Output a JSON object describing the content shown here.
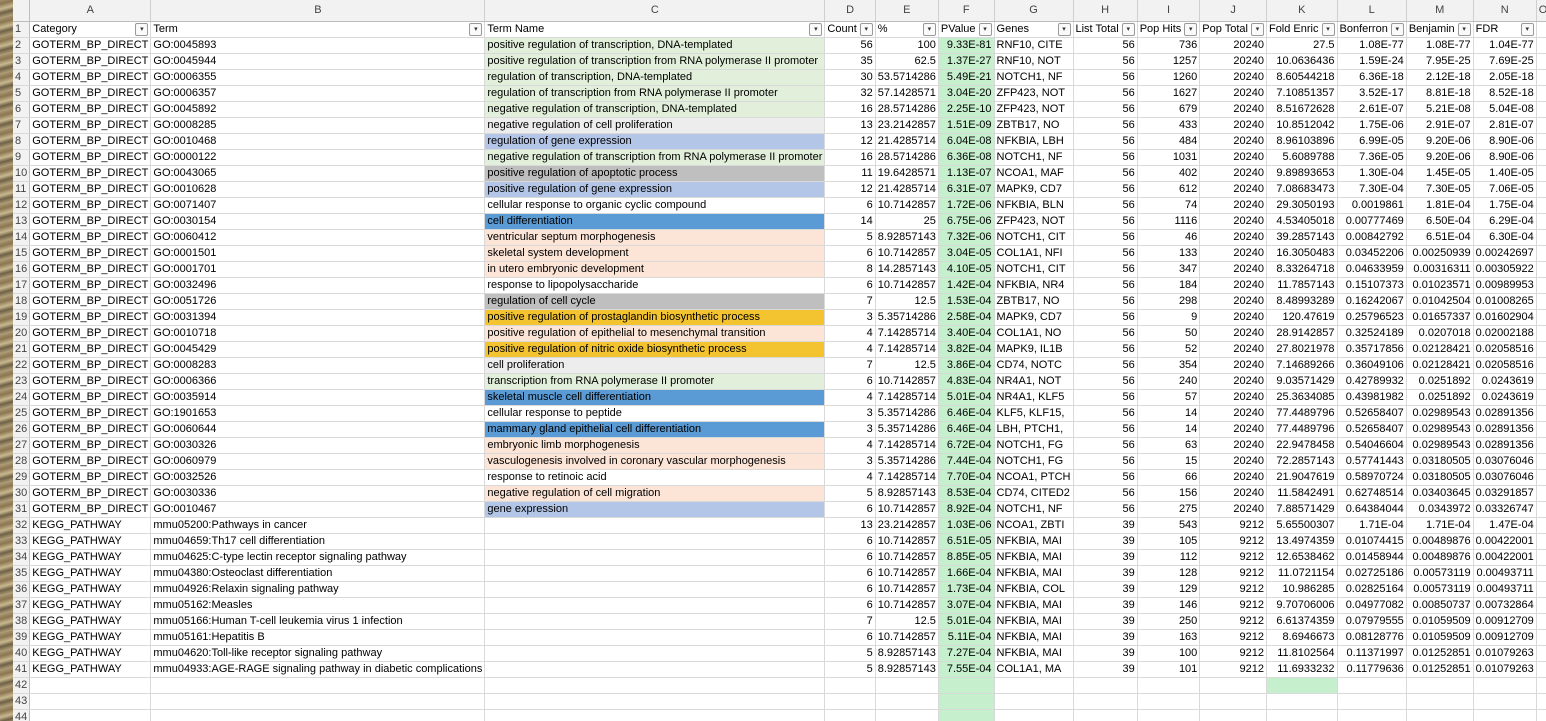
{
  "column_letters": [
    "A",
    "B",
    "C",
    "D",
    "E",
    "F",
    "G",
    "H",
    "I",
    "J",
    "K",
    "L",
    "M",
    "N",
    "O"
  ],
  "headers": [
    "Category",
    "Term",
    "Term Name",
    "Count",
    "%",
    "PValue",
    "Genes",
    "List Total",
    "Pop Hits",
    "Pop Total",
    "Fold Enric",
    "Bonferron",
    "Benjamin",
    "FDR"
  ],
  "rows": [
    {
      "n": "2",
      "cat": "GOTERM_BP_DIRECT",
      "term": "GO:0045893",
      "name": "positive regulation of transcription, DNA-templated",
      "count": "56",
      "pct": "100",
      "pv": "9.33E-81",
      "genes": "RNF10, CITE",
      "lt": "56",
      "ph": "736",
      "pt": "20240",
      "fe": "27.5",
      "bon": "1.08E-77",
      "ben": "1.08E-77",
      "fdr": "1.04E-77",
      "hl": "lgreen"
    },
    {
      "n": "3",
      "cat": "GOTERM_BP_DIRECT",
      "term": "GO:0045944",
      "name": "positive regulation of transcription from RNA polymerase II promoter",
      "count": "35",
      "pct": "62.5",
      "pv": "1.37E-27",
      "genes": "RNF10, NOT",
      "lt": "56",
      "ph": "1257",
      "pt": "20240",
      "fe": "10.0636436",
      "bon": "1.59E-24",
      "ben": "7.95E-25",
      "fdr": "7.69E-25",
      "hl": "lgreen"
    },
    {
      "n": "4",
      "cat": "GOTERM_BP_DIRECT",
      "term": "GO:0006355",
      "name": "regulation of transcription, DNA-templated",
      "count": "30",
      "pct": "53.5714286",
      "pv": "5.49E-21",
      "genes": "NOTCH1, NF",
      "lt": "56",
      "ph": "1260",
      "pt": "20240",
      "fe": "8.60544218",
      "bon": "6.36E-18",
      "ben": "2.12E-18",
      "fdr": "2.05E-18",
      "hl": "lgreen"
    },
    {
      "n": "5",
      "cat": "GOTERM_BP_DIRECT",
      "term": "GO:0006357",
      "name": "regulation of transcription from RNA polymerase II promoter",
      "count": "32",
      "pct": "57.1428571",
      "pv": "3.04E-20",
      "genes": "ZFP423, NOT",
      "lt": "56",
      "ph": "1627",
      "pt": "20240",
      "fe": "7.10851357",
      "bon": "3.52E-17",
      "ben": "8.81E-18",
      "fdr": "8.52E-18",
      "hl": "lgreen"
    },
    {
      "n": "6",
      "cat": "GOTERM_BP_DIRECT",
      "term": "GO:0045892",
      "name": "negative regulation of transcription, DNA-templated",
      "count": "16",
      "pct": "28.5714286",
      "pv": "2.25E-10",
      "genes": "ZFP423, NOT",
      "lt": "56",
      "ph": "679",
      "pt": "20240",
      "fe": "8.51672628",
      "bon": "2.61E-07",
      "ben": "5.21E-08",
      "fdr": "5.04E-08",
      "hl": "lgreen"
    },
    {
      "n": "7",
      "cat": "GOTERM_BP_DIRECT",
      "term": "GO:0008285",
      "name": "negative regulation of cell proliferation",
      "count": "13",
      "pct": "23.2142857",
      "pv": "1.51E-09",
      "genes": "ZBTB17, NO",
      "lt": "56",
      "ph": "433",
      "pt": "20240",
      "fe": "10.8512042",
      "bon": "1.75E-06",
      "ben": "2.91E-07",
      "fdr": "2.81E-07",
      "hl": "lgray"
    },
    {
      "n": "8",
      "cat": "GOTERM_BP_DIRECT",
      "term": "GO:0010468",
      "name": "regulation of gene expression",
      "count": "12",
      "pct": "21.4285714",
      "pv": "6.04E-08",
      "genes": "NFKBIA, LBH",
      "lt": "56",
      "ph": "484",
      "pt": "20240",
      "fe": "8.96103896",
      "bon": "6.99E-05",
      "ben": "9.20E-06",
      "fdr": "8.90E-06",
      "hl": "lblue"
    },
    {
      "n": "9",
      "cat": "GOTERM_BP_DIRECT",
      "term": "GO:0000122",
      "name": "negative regulation of transcription from RNA polymerase II promoter",
      "count": "16",
      "pct": "28.5714286",
      "pv": "6.36E-08",
      "genes": "NOTCH1, NF",
      "lt": "56",
      "ph": "1031",
      "pt": "20240",
      "fe": "5.6089788",
      "bon": "7.36E-05",
      "ben": "9.20E-06",
      "fdr": "8.90E-06",
      "hl": "lgreen"
    },
    {
      "n": "10",
      "cat": "GOTERM_BP_DIRECT",
      "term": "GO:0043065",
      "name": "positive regulation of apoptotic process",
      "count": "11",
      "pct": "19.6428571",
      "pv": "1.13E-07",
      "genes": "NCOA1, MAF",
      "lt": "56",
      "ph": "402",
      "pt": "20240",
      "fe": "9.89893653",
      "bon": "1.30E-04",
      "ben": "1.45E-05",
      "fdr": "1.40E-05",
      "hl": "gray"
    },
    {
      "n": "11",
      "cat": "GOTERM_BP_DIRECT",
      "term": "GO:0010628",
      "name": "positive regulation of gene expression",
      "count": "12",
      "pct": "21.4285714",
      "pv": "6.31E-07",
      "genes": "MAPK9, CD7",
      "lt": "56",
      "ph": "612",
      "pt": "20240",
      "fe": "7.08683473",
      "bon": "7.30E-04",
      "ben": "7.30E-05",
      "fdr": "7.06E-05",
      "hl": "lblue"
    },
    {
      "n": "12",
      "cat": "GOTERM_BP_DIRECT",
      "term": "GO:0071407",
      "name": "cellular response to organic cyclic compound",
      "count": "6",
      "pct": "10.7142857",
      "pv": "1.72E-06",
      "genes": "NFKBIA, BLN",
      "lt": "56",
      "ph": "74",
      "pt": "20240",
      "fe": "29.3050193",
      "bon": "0.0019861",
      "ben": "1.81E-04",
      "fdr": "1.75E-04",
      "hl": ""
    },
    {
      "n": "13",
      "cat": "GOTERM_BP_DIRECT",
      "term": "GO:0030154",
      "name": "cell differentiation",
      "count": "14",
      "pct": "25",
      "pv": "6.75E-06",
      "genes": "ZFP423, NOT",
      "lt": "56",
      "ph": "1116",
      "pt": "20240",
      "fe": "4.53405018",
      "bon": "0.00777469",
      "ben": "6.50E-04",
      "fdr": "6.29E-04",
      "hl": "dblue"
    },
    {
      "n": "14",
      "cat": "GOTERM_BP_DIRECT",
      "term": "GO:0060412",
      "name": "ventricular septum morphogenesis",
      "count": "5",
      "pct": "8.92857143",
      "pv": "7.32E-06",
      "genes": "NOTCH1, CIT",
      "lt": "56",
      "ph": "46",
      "pt": "20240",
      "fe": "39.2857143",
      "bon": "0.00842792",
      "ben": "6.51E-04",
      "fdr": "6.30E-04",
      "hl": "peach"
    },
    {
      "n": "15",
      "cat": "GOTERM_BP_DIRECT",
      "term": "GO:0001501",
      "name": "skeletal system development",
      "count": "6",
      "pct": "10.7142857",
      "pv": "3.04E-05",
      "genes": "COL1A1, NFI",
      "lt": "56",
      "ph": "133",
      "pt": "20240",
      "fe": "16.3050483",
      "bon": "0.03452206",
      "ben": "0.00250939",
      "fdr": "0.00242697",
      "hl": "peach"
    },
    {
      "n": "16",
      "cat": "GOTERM_BP_DIRECT",
      "term": "GO:0001701",
      "name": "in utero embryonic development",
      "count": "8",
      "pct": "14.2857143",
      "pv": "4.10E-05",
      "genes": "NOTCH1, CIT",
      "lt": "56",
      "ph": "347",
      "pt": "20240",
      "fe": "8.33264718",
      "bon": "0.04633959",
      "ben": "0.00316311",
      "fdr": "0.00305922",
      "hl": "peach"
    },
    {
      "n": "17",
      "cat": "GOTERM_BP_DIRECT",
      "term": "GO:0032496",
      "name": "response to lipopolysaccharide",
      "count": "6",
      "pct": "10.7142857",
      "pv": "1.42E-04",
      "genes": "NFKBIA, NR4",
      "lt": "56",
      "ph": "184",
      "pt": "20240",
      "fe": "11.7857143",
      "bon": "0.15107373",
      "ben": "0.01023571",
      "fdr": "0.00989953",
      "hl": ""
    },
    {
      "n": "18",
      "cat": "GOTERM_BP_DIRECT",
      "term": "GO:0051726",
      "name": "regulation of cell cycle",
      "count": "7",
      "pct": "12.5",
      "pv": "1.53E-04",
      "genes": "ZBTB17, NO",
      "lt": "56",
      "ph": "298",
      "pt": "20240",
      "fe": "8.48993289",
      "bon": "0.16242067",
      "ben": "0.01042504",
      "fdr": "0.01008265",
      "hl": "gray"
    },
    {
      "n": "19",
      "cat": "GOTERM_BP_DIRECT",
      "term": "GO:0031394",
      "name": "positive regulation of prostaglandin biosynthetic process",
      "count": "3",
      "pct": "5.35714286",
      "pv": "2.58E-04",
      "genes": "MAPK9, CD7",
      "lt": "56",
      "ph": "9",
      "pt": "20240",
      "fe": "120.47619",
      "bon": "0.25796523",
      "ben": "0.01657337",
      "fdr": "0.01602904",
      "hl": "gold"
    },
    {
      "n": "20",
      "cat": "GOTERM_BP_DIRECT",
      "term": "GO:0010718",
      "name": "positive regulation of epithelial to mesenchymal transition",
      "count": "4",
      "pct": "7.14285714",
      "pv": "3.40E-04",
      "genes": "COL1A1, NO",
      "lt": "56",
      "ph": "50",
      "pt": "20240",
      "fe": "28.9142857",
      "bon": "0.32524189",
      "ben": "0.0207018",
      "fdr": "0.02002188",
      "hl": "peach"
    },
    {
      "n": "21",
      "cat": "GOTERM_BP_DIRECT",
      "term": "GO:0045429",
      "name": "positive regulation of nitric oxide biosynthetic process",
      "count": "4",
      "pct": "7.14285714",
      "pv": "3.82E-04",
      "genes": "MAPK9, IL1B",
      "lt": "56",
      "ph": "52",
      "pt": "20240",
      "fe": "27.8021978",
      "bon": "0.35717856",
      "ben": "0.02128421",
      "fdr": "0.02058516",
      "hl": "gold"
    },
    {
      "n": "22",
      "cat": "GOTERM_BP_DIRECT",
      "term": "GO:0008283",
      "name": "cell proliferation",
      "count": "7",
      "pct": "12.5",
      "pv": "3.86E-04",
      "genes": "CD74, NOTC",
      "lt": "56",
      "ph": "354",
      "pt": "20240",
      "fe": "7.14689266",
      "bon": "0.36049106",
      "ben": "0.02128421",
      "fdr": "0.02058516",
      "hl": "lgray"
    },
    {
      "n": "23",
      "cat": "GOTERM_BP_DIRECT",
      "term": "GO:0006366",
      "name": "transcription from RNA polymerase II promoter",
      "count": "6",
      "pct": "10.7142857",
      "pv": "4.83E-04",
      "genes": "NR4A1, NOT",
      "lt": "56",
      "ph": "240",
      "pt": "20240",
      "fe": "9.03571429",
      "bon": "0.42789932",
      "ben": "0.0251892",
      "fdr": "0.0243619",
      "hl": "lgreen"
    },
    {
      "n": "24",
      "cat": "GOTERM_BP_DIRECT",
      "term": "GO:0035914",
      "name": "skeletal muscle cell differentiation",
      "count": "4",
      "pct": "7.14285714",
      "pv": "5.01E-04",
      "genes": "NR4A1, KLF5",
      "lt": "56",
      "ph": "57",
      "pt": "20240",
      "fe": "25.3634085",
      "bon": "0.43981982",
      "ben": "0.0251892",
      "fdr": "0.0243619",
      "hl": "dblue"
    },
    {
      "n": "25",
      "cat": "GOTERM_BP_DIRECT",
      "term": "GO:1901653",
      "name": "cellular response to peptide",
      "count": "3",
      "pct": "5.35714286",
      "pv": "6.46E-04",
      "genes": "KLF5, KLF15,",
      "lt": "56",
      "ph": "14",
      "pt": "20240",
      "fe": "77.4489796",
      "bon": "0.52658407",
      "ben": "0.02989543",
      "fdr": "0.02891356",
      "hl": ""
    },
    {
      "n": "26",
      "cat": "GOTERM_BP_DIRECT",
      "term": "GO:0060644",
      "name": "mammary gland epithelial cell differentiation",
      "count": "3",
      "pct": "5.35714286",
      "pv": "6.46E-04",
      "genes": "LBH, PTCH1,",
      "lt": "56",
      "ph": "14",
      "pt": "20240",
      "fe": "77.4489796",
      "bon": "0.52658407",
      "ben": "0.02989543",
      "fdr": "0.02891356",
      "hl": "dblue"
    },
    {
      "n": "27",
      "cat": "GOTERM_BP_DIRECT",
      "term": "GO:0030326",
      "name": "embryonic limb morphogenesis",
      "count": "4",
      "pct": "7.14285714",
      "pv": "6.72E-04",
      "genes": "NOTCH1, FG",
      "lt": "56",
      "ph": "63",
      "pt": "20240",
      "fe": "22.9478458",
      "bon": "0.54046604",
      "ben": "0.02989543",
      "fdr": "0.02891356",
      "hl": "peach"
    },
    {
      "n": "28",
      "cat": "GOTERM_BP_DIRECT",
      "term": "GO:0060979",
      "name": "vasculogenesis involved in coronary vascular morphogenesis",
      "count": "3",
      "pct": "5.35714286",
      "pv": "7.44E-04",
      "genes": "NOTCH1, FG",
      "lt": "56",
      "ph": "15",
      "pt": "20240",
      "fe": "72.2857143",
      "bon": "0.57741443",
      "ben": "0.03180505",
      "fdr": "0.03076046",
      "hl": "peach"
    },
    {
      "n": "29",
      "cat": "GOTERM_BP_DIRECT",
      "term": "GO:0032526",
      "name": "response to retinoic acid",
      "count": "4",
      "pct": "7.14285714",
      "pv": "7.70E-04",
      "genes": "NCOA1, PTCH",
      "lt": "56",
      "ph": "66",
      "pt": "20240",
      "fe": "21.9047619",
      "bon": "0.58970724",
      "ben": "0.03180505",
      "fdr": "0.03076046",
      "hl": ""
    },
    {
      "n": "30",
      "cat": "GOTERM_BP_DIRECT",
      "term": "GO:0030336",
      "name": "negative regulation of cell migration",
      "count": "5",
      "pct": "8.92857143",
      "pv": "8.53E-04",
      "genes": "CD74, CITED2",
      "lt": "56",
      "ph": "156",
      "pt": "20240",
      "fe": "11.5842491",
      "bon": "0.62748514",
      "ben": "0.03403645",
      "fdr": "0.03291857",
      "hl": "peach"
    },
    {
      "n": "31",
      "cat": "GOTERM_BP_DIRECT",
      "term": "GO:0010467",
      "name": "gene expression",
      "count": "6",
      "pct": "10.7142857",
      "pv": "8.92E-04",
      "genes": "NOTCH1, NF",
      "lt": "56",
      "ph": "275",
      "pt": "20240",
      "fe": "7.88571429",
      "bon": "0.64384044",
      "ben": "0.0343972",
      "fdr": "0.03326747",
      "hl": "lblue"
    },
    {
      "n": "32",
      "cat": "KEGG_PATHWAY",
      "term": "mmu05200:Pathways in cancer",
      "name": "",
      "count": "13",
      "pct": "23.2142857",
      "pv": "1.03E-06",
      "genes": "NCOA1, ZBTI",
      "lt": "39",
      "ph": "543",
      "pt": "9212",
      "fe": "5.65500307",
      "bon": "1.71E-04",
      "ben": "1.71E-04",
      "fdr": "1.47E-04",
      "hl": ""
    },
    {
      "n": "33",
      "cat": "KEGG_PATHWAY",
      "term": "mmu04659:Th17 cell differentiation",
      "name": "",
      "count": "6",
      "pct": "10.7142857",
      "pv": "6.51E-05",
      "genes": "NFKBIA, MAI",
      "lt": "39",
      "ph": "105",
      "pt": "9212",
      "fe": "13.4974359",
      "bon": "0.01074415",
      "ben": "0.00489876",
      "fdr": "0.00422001",
      "hl": ""
    },
    {
      "n": "34",
      "cat": "KEGG_PATHWAY",
      "term": "mmu04625:C-type lectin receptor signaling pathway",
      "name": "",
      "count": "6",
      "pct": "10.7142857",
      "pv": "8.85E-05",
      "genes": "NFKBIA, MAI",
      "lt": "39",
      "ph": "112",
      "pt": "9212",
      "fe": "12.6538462",
      "bon": "0.01458944",
      "ben": "0.00489876",
      "fdr": "0.00422001",
      "hl": ""
    },
    {
      "n": "35",
      "cat": "KEGG_PATHWAY",
      "term": "mmu04380:Osteoclast differentiation",
      "name": "",
      "count": "6",
      "pct": "10.7142857",
      "pv": "1.66E-04",
      "genes": "NFKBIA, MAI",
      "lt": "39",
      "ph": "128",
      "pt": "9212",
      "fe": "11.0721154",
      "bon": "0.02725186",
      "ben": "0.00573119",
      "fdr": "0.00493711",
      "hl": ""
    },
    {
      "n": "36",
      "cat": "KEGG_PATHWAY",
      "term": "mmu04926:Relaxin signaling pathway",
      "name": "",
      "count": "6",
      "pct": "10.7142857",
      "pv": "1.73E-04",
      "genes": "NFKBIA, COL",
      "lt": "39",
      "ph": "129",
      "pt": "9212",
      "fe": "10.986285",
      "bon": "0.02825164",
      "ben": "0.00573119",
      "fdr": "0.00493711",
      "hl": ""
    },
    {
      "n": "37",
      "cat": "KEGG_PATHWAY",
      "term": "mmu05162:Measles",
      "name": "",
      "count": "6",
      "pct": "10.7142857",
      "pv": "3.07E-04",
      "genes": "NFKBIA, MAI",
      "lt": "39",
      "ph": "146",
      "pt": "9212",
      "fe": "9.70706006",
      "bon": "0.04977082",
      "ben": "0.00850737",
      "fdr": "0.00732864",
      "hl": ""
    },
    {
      "n": "38",
      "cat": "KEGG_PATHWAY",
      "term": "mmu05166:Human T-cell leukemia virus 1 infection",
      "name": "",
      "count": "7",
      "pct": "12.5",
      "pv": "5.01E-04",
      "genes": "NFKBIA, MAI",
      "lt": "39",
      "ph": "250",
      "pt": "9212",
      "fe": "6.61374359",
      "bon": "0.07979555",
      "ben": "0.01059509",
      "fdr": "0.00912709",
      "hl": ""
    },
    {
      "n": "39",
      "cat": "KEGG_PATHWAY",
      "term": "mmu05161:Hepatitis B",
      "name": "",
      "count": "6",
      "pct": "10.7142857",
      "pv": "5.11E-04",
      "genes": "NFKBIA, MAI",
      "lt": "39",
      "ph": "163",
      "pt": "9212",
      "fe": "8.6946673",
      "bon": "0.08128776",
      "ben": "0.01059509",
      "fdr": "0.00912709",
      "hl": ""
    },
    {
      "n": "40",
      "cat": "KEGG_PATHWAY",
      "term": "mmu04620:Toll-like receptor signaling pathway",
      "name": "",
      "count": "5",
      "pct": "8.92857143",
      "pv": "7.27E-04",
      "genes": "NFKBIA, MAI",
      "lt": "39",
      "ph": "100",
      "pt": "9212",
      "fe": "11.8102564",
      "bon": "0.11371997",
      "ben": "0.01252851",
      "fdr": "0.01079263",
      "hl": ""
    },
    {
      "n": "41",
      "cat": "KEGG_PATHWAY",
      "term": "mmu04933:AGE-RAGE signaling pathway in diabetic complications",
      "name": "",
      "count": "5",
      "pct": "8.92857143",
      "pv": "7.55E-04",
      "genes": "COL1A1, MA",
      "lt": "39",
      "ph": "101",
      "pt": "9212",
      "fe": "11.6933232",
      "bon": "0.11779636",
      "ben": "0.01252851",
      "fdr": "0.01079263",
      "hl": ""
    }
  ],
  "empty_rows": [
    "42",
    "43",
    "44"
  ],
  "colors": {
    "lgreen": "#e2efda",
    "lblue": "#b4c6e7",
    "dblue": "#5b9bd5",
    "gray": "#bfbfbf",
    "lgray": "#ededed",
    "peach": "#fce4d6",
    "gold": "#f4c430",
    "pvalue_fill": "#c6efce"
  }
}
